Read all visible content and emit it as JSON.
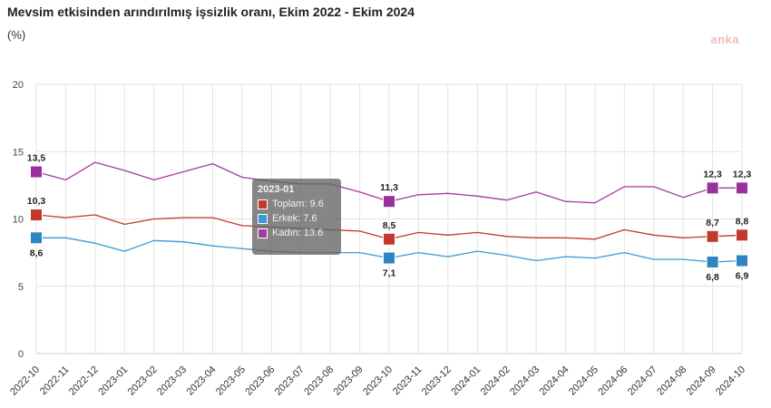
{
  "chart_data": {
    "type": "line",
    "title": "Mevsim etkisinden arındırılmış işsizlik oranı, Ekim 2022 - Ekim 2024",
    "unit_label": "(%)",
    "watermark": "anka",
    "ylim": [
      0,
      20
    ],
    "yticks": [
      0,
      5,
      10,
      15,
      20
    ],
    "categories": [
      "2022-10",
      "2022-11",
      "2022-12",
      "2023-01",
      "2023-02",
      "2023-03",
      "2023-04",
      "2023-05",
      "2023-06",
      "2023-07",
      "2023-08",
      "2023-09",
      "2023-10",
      "2023-11",
      "2023-12",
      "2024-01",
      "2024-02",
      "2024-03",
      "2024-04",
      "2024-05",
      "2024-06",
      "2024-07",
      "2024-08",
      "2024-09",
      "2024-10"
    ],
    "series": [
      {
        "name": "Toplam",
        "color": "#c0392b",
        "marker_color": "#c0392b",
        "values": [
          10.3,
          10.1,
          10.3,
          9.6,
          10.0,
          10.1,
          10.1,
          9.5,
          9.4,
          9.3,
          9.2,
          9.1,
          8.5,
          9.0,
          8.8,
          9.0,
          8.7,
          8.6,
          8.6,
          8.5,
          9.2,
          8.8,
          8.6,
          8.7,
          8.8
        ]
      },
      {
        "name": "Erkek",
        "color": "#3a9ad9",
        "marker_color": "#2e86c1",
        "values": [
          8.6,
          8.6,
          8.2,
          7.6,
          8.4,
          8.3,
          8.0,
          7.8,
          7.6,
          7.5,
          7.5,
          7.5,
          7.1,
          7.5,
          7.2,
          7.6,
          7.3,
          6.9,
          7.2,
          7.1,
          7.5,
          7.0,
          7.0,
          6.8,
          6.9
        ]
      },
      {
        "name": "Kadın",
        "color": "#a33aa3",
        "marker_color": "#9b2f9b",
        "values": [
          13.5,
          12.9,
          14.2,
          13.6,
          12.9,
          13.5,
          14.1,
          13.1,
          12.8,
          12.6,
          12.6,
          12.0,
          11.3,
          11.8,
          11.9,
          11.7,
          11.4,
          12.0,
          11.3,
          11.2,
          12.4,
          12.4,
          11.6,
          12.3,
          12.3
        ]
      }
    ],
    "annotated_points": [
      {
        "series": "Toplam",
        "index": 0,
        "label": "10,3",
        "pos": "above"
      },
      {
        "series": "Erkek",
        "index": 0,
        "label": "8,6",
        "pos": "below"
      },
      {
        "series": "Kadın",
        "index": 0,
        "label": "13,5",
        "pos": "above"
      },
      {
        "series": "Toplam",
        "index": 12,
        "label": "8,5",
        "pos": "above"
      },
      {
        "series": "Erkek",
        "index": 12,
        "label": "7,1",
        "pos": "below"
      },
      {
        "series": "Kadın",
        "index": 12,
        "label": "11,3",
        "pos": "above"
      },
      {
        "series": "Toplam",
        "index": 23,
        "label": "8,7",
        "pos": "above"
      },
      {
        "series": "Erkek",
        "index": 23,
        "label": "6,8",
        "pos": "below"
      },
      {
        "series": "Kadın",
        "index": 23,
        "label": "12,3",
        "pos": "above"
      },
      {
        "series": "Toplam",
        "index": 24,
        "label": "8,8",
        "pos": "above"
      },
      {
        "series": "Erkek",
        "index": 24,
        "label": "6,9",
        "pos": "below"
      },
      {
        "series": "Kadın",
        "index": 24,
        "label": "12,3",
        "pos": "above"
      }
    ],
    "tooltip": {
      "header": "2023-01",
      "rows": [
        {
          "text": "Toplam: 9.6",
          "color": "#c0392b"
        },
        {
          "text": "Erkek: 7.6",
          "color": "#3a9ad9"
        },
        {
          "text": "Kadın: 13.6",
          "color": "#a33aa3"
        }
      ]
    },
    "grid": true
  }
}
